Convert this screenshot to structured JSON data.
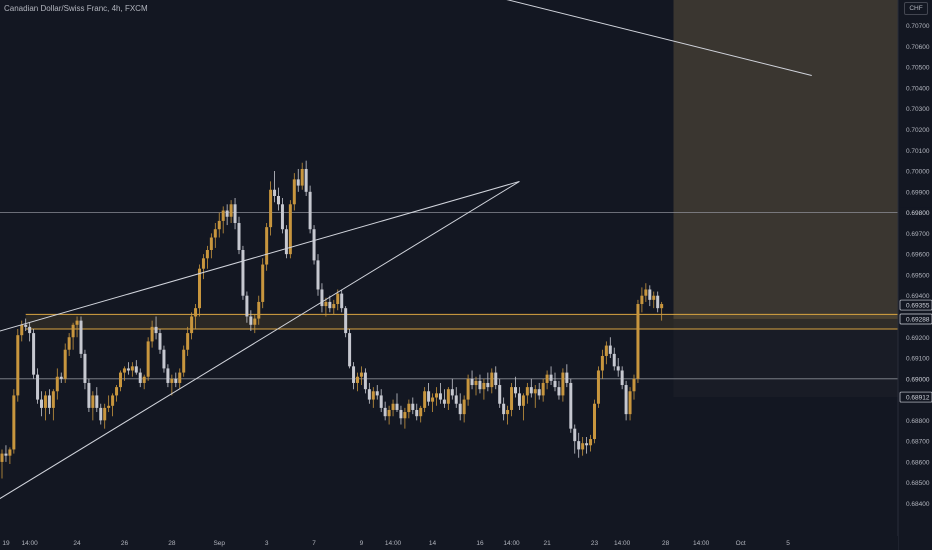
{
  "header": {
    "title": "Canadian Dollar/Swiss Franc, 4h, FXCM",
    "currency": "CHF"
  },
  "colors": {
    "background": "#131722",
    "bull": "#c8963e",
    "bear": "#c6c8d0",
    "hline": "#9598a1",
    "trendline": "#d1d4dc",
    "zone_orange": "#d9a441",
    "projection_profit": "#3a3630",
    "projection_loss": "#191c26"
  },
  "chart_data": {
    "type": "candlestick",
    "ylim": [
      0.6833,
      0.7078
    ],
    "y_ticks": [
      "0.70700",
      "0.70600",
      "0.70500",
      "0.70400",
      "0.70300",
      "0.70200",
      "0.70100",
      "0.70000",
      "0.69900",
      "0.69700",
      "0.69600",
      "0.69500",
      "0.69400",
      "0.69200",
      "0.69100",
      "0.68800",
      "0.68700",
      "0.68600",
      "0.68500",
      "0.68400"
    ],
    "x_ticks": [
      {
        "label": "19",
        "idx": 1
      },
      {
        "label": "14:00",
        "idx": 7
      },
      {
        "label": "24",
        "idx": 19
      },
      {
        "label": "26",
        "idx": 31
      },
      {
        "label": "28",
        "idx": 43
      },
      {
        "label": "Sep",
        "idx": 55
      },
      {
        "label": "3",
        "idx": 67
      },
      {
        "label": "7",
        "idx": 79
      },
      {
        "label": "9",
        "idx": 91
      },
      {
        "label": "14:00",
        "idx": 99
      },
      {
        "label": "14",
        "idx": 109
      },
      {
        "label": "16",
        "idx": 121
      },
      {
        "label": "14:00",
        "idx": 129
      },
      {
        "label": "21",
        "idx": 138
      },
      {
        "label": "23",
        "idx": 150
      },
      {
        "label": "14:00",
        "idx": 157
      },
      {
        "label": "28",
        "idx": 168
      },
      {
        "label": "14:00",
        "idx": 177
      },
      {
        "label": "Oct",
        "idx": 187
      },
      {
        "label": "5",
        "idx": 199
      }
    ],
    "price_labels": [
      {
        "label": "0.69800",
        "value": 0.698,
        "style": "line"
      },
      {
        "label": "0.69355",
        "value": 0.69355,
        "style": "box"
      },
      {
        "label": "0.69288",
        "value": 0.69288,
        "style": "box"
      },
      {
        "label": "0.69000",
        "value": 0.69,
        "style": "line"
      },
      {
        "label": "0.68912",
        "value": 0.68912,
        "style": "box"
      }
    ],
    "horizontal_lines": [
      0.698,
      0.69
    ],
    "support_zone": [
      0.6924,
      0.6931
    ],
    "trendlines": [
      {
        "from": [
          -6,
          0.692
        ],
        "to": [
          131,
          0.6995
        ]
      },
      {
        "from": [
          -6,
          0.6836
        ],
        "to": [
          131,
          0.6995
        ]
      },
      {
        "from": [
          112,
          0.709
        ],
        "to": [
          205,
          0.7046
        ]
      }
    ],
    "projection": {
      "start_idx": 170,
      "top": 0.7078,
      "mid": 0.69288,
      "bottom": 0.68912
    },
    "candles": [
      [
        0.686,
        0.6866,
        0.6852,
        0.6864
      ],
      [
        0.6864,
        0.6868,
        0.686,
        0.6863
      ],
      [
        0.6863,
        0.6867,
        0.6859,
        0.6866
      ],
      [
        0.6866,
        0.6895,
        0.6864,
        0.6892
      ],
      [
        0.6892,
        0.6924,
        0.6889,
        0.6921
      ],
      [
        0.6921,
        0.6928,
        0.6918,
        0.6926
      ],
      [
        0.6926,
        0.6929,
        0.6923,
        0.6925
      ],
      [
        0.6925,
        0.6927,
        0.6918,
        0.6922
      ],
      [
        0.6922,
        0.6924,
        0.69,
        0.6902
      ],
      [
        0.6902,
        0.6905,
        0.6888,
        0.689
      ],
      [
        0.689,
        0.6894,
        0.6882,
        0.6886
      ],
      [
        0.6886,
        0.6894,
        0.688,
        0.6892
      ],
      [
        0.6892,
        0.6895,
        0.6883,
        0.6886
      ],
      [
        0.6886,
        0.6895,
        0.688,
        0.6894
      ],
      [
        0.6894,
        0.6905,
        0.689,
        0.6901
      ],
      [
        0.6901,
        0.6903,
        0.6898,
        0.69
      ],
      [
        0.69,
        0.6917,
        0.6898,
        0.6914
      ],
      [
        0.6914,
        0.6922,
        0.6911,
        0.692
      ],
      [
        0.692,
        0.6927,
        0.6914,
        0.6926
      ],
      [
        0.6926,
        0.693,
        0.692,
        0.6928
      ],
      [
        0.6928,
        0.693,
        0.691,
        0.6912
      ],
      [
        0.6912,
        0.6914,
        0.6895,
        0.6898
      ],
      [
        0.6898,
        0.69,
        0.6884,
        0.6886
      ],
      [
        0.6886,
        0.6894,
        0.688,
        0.6892
      ],
      [
        0.6892,
        0.6896,
        0.6884,
        0.6886
      ],
      [
        0.6886,
        0.6888,
        0.6878,
        0.688
      ],
      [
        0.688,
        0.6888,
        0.6876,
        0.6886
      ],
      [
        0.6886,
        0.6892,
        0.6884,
        0.6887
      ],
      [
        0.6887,
        0.6893,
        0.6882,
        0.6892
      ],
      [
        0.6892,
        0.6897,
        0.6889,
        0.6896
      ],
      [
        0.6896,
        0.6904,
        0.6894,
        0.6903
      ],
      [
        0.6903,
        0.6906,
        0.6899,
        0.6905
      ],
      [
        0.6905,
        0.6908,
        0.6902,
        0.6904
      ],
      [
        0.6904,
        0.6908,
        0.6901,
        0.6906
      ],
      [
        0.6906,
        0.6909,
        0.6902,
        0.6903
      ],
      [
        0.6903,
        0.6905,
        0.6896,
        0.6898
      ],
      [
        0.6898,
        0.6902,
        0.6895,
        0.6901
      ],
      [
        0.6901,
        0.692,
        0.6899,
        0.6918
      ],
      [
        0.6918,
        0.6928,
        0.6915,
        0.6925
      ],
      [
        0.6925,
        0.693,
        0.6919,
        0.6922
      ],
      [
        0.6922,
        0.6924,
        0.6912,
        0.6914
      ],
      [
        0.6914,
        0.6916,
        0.6903,
        0.6905
      ],
      [
        0.6905,
        0.6907,
        0.6896,
        0.6898
      ],
      [
        0.6898,
        0.6902,
        0.6892,
        0.69
      ],
      [
        0.69,
        0.6903,
        0.6896,
        0.6898
      ],
      [
        0.6898,
        0.6905,
        0.6895,
        0.6903
      ],
      [
        0.6903,
        0.6916,
        0.6901,
        0.6914
      ],
      [
        0.6914,
        0.6925,
        0.6911,
        0.6922
      ],
      [
        0.6922,
        0.6932,
        0.6919,
        0.693
      ],
      [
        0.693,
        0.6936,
        0.6924,
        0.6934
      ],
      [
        0.6934,
        0.6955,
        0.693,
        0.6953
      ],
      [
        0.6953,
        0.696,
        0.6948,
        0.6958
      ],
      [
        0.6958,
        0.6964,
        0.6953,
        0.6962
      ],
      [
        0.6962,
        0.697,
        0.6958,
        0.6968
      ],
      [
        0.6968,
        0.6975,
        0.6963,
        0.6972
      ],
      [
        0.6972,
        0.698,
        0.6968,
        0.6976
      ],
      [
        0.6976,
        0.6983,
        0.697,
        0.6981
      ],
      [
        0.6981,
        0.6984,
        0.6974,
        0.6978
      ],
      [
        0.6978,
        0.6986,
        0.6975,
        0.6984
      ],
      [
        0.6984,
        0.6987,
        0.6972,
        0.6975
      ],
      [
        0.6975,
        0.6978,
        0.696,
        0.6962
      ],
      [
        0.6962,
        0.6964,
        0.6938,
        0.694
      ],
      [
        0.694,
        0.6942,
        0.6927,
        0.693
      ],
      [
        0.693,
        0.6933,
        0.6923,
        0.6926
      ],
      [
        0.6926,
        0.6931,
        0.6922,
        0.6929
      ],
      [
        0.6929,
        0.694,
        0.6926,
        0.6937
      ],
      [
        0.6937,
        0.6958,
        0.6934,
        0.6955
      ],
      [
        0.6955,
        0.6975,
        0.6952,
        0.6973
      ],
      [
        0.6973,
        0.6995,
        0.6969,
        0.6991
      ],
      [
        0.6991,
        0.7,
        0.6985,
        0.6988
      ],
      [
        0.6988,
        0.6992,
        0.6981,
        0.6984
      ],
      [
        0.6984,
        0.6987,
        0.697,
        0.6972
      ],
      [
        0.6972,
        0.6974,
        0.6958,
        0.696
      ],
      [
        0.696,
        0.6986,
        0.6958,
        0.6984
      ],
      [
        0.6984,
        0.6999,
        0.6981,
        0.6996
      ],
      [
        0.6996,
        0.7001,
        0.699,
        0.6993
      ],
      [
        0.6993,
        0.7004,
        0.6991,
        0.7001
      ],
      [
        0.7001,
        0.7005,
        0.6988,
        0.699
      ],
      [
        0.699,
        0.6993,
        0.697,
        0.6972
      ],
      [
        0.6972,
        0.6974,
        0.6955,
        0.6957
      ],
      [
        0.6957,
        0.696,
        0.694,
        0.6943
      ],
      [
        0.6943,
        0.6946,
        0.6932,
        0.6935
      ],
      [
        0.6935,
        0.6939,
        0.693,
        0.6937
      ],
      [
        0.6937,
        0.694,
        0.6932,
        0.6934
      ],
      [
        0.6934,
        0.6938,
        0.6931,
        0.6936
      ],
      [
        0.6936,
        0.6943,
        0.6933,
        0.6941
      ],
      [
        0.6941,
        0.6943,
        0.6932,
        0.6934
      ],
      [
        0.6934,
        0.6935,
        0.692,
        0.6922
      ],
      [
        0.6922,
        0.6924,
        0.6905,
        0.6906
      ],
      [
        0.6906,
        0.6908,
        0.6895,
        0.6898
      ],
      [
        0.6898,
        0.6903,
        0.6894,
        0.6901
      ],
      [
        0.6901,
        0.6906,
        0.6897,
        0.6903
      ],
      [
        0.6903,
        0.6905,
        0.6893,
        0.6895
      ],
      [
        0.6895,
        0.6898,
        0.6888,
        0.689
      ],
      [
        0.689,
        0.6896,
        0.6886,
        0.6894
      ],
      [
        0.6894,
        0.6897,
        0.689,
        0.6892
      ],
      [
        0.6892,
        0.6895,
        0.6884,
        0.6886
      ],
      [
        0.6886,
        0.6889,
        0.688,
        0.6882
      ],
      [
        0.6882,
        0.6887,
        0.6878,
        0.6885
      ],
      [
        0.6885,
        0.689,
        0.6882,
        0.6888
      ],
      [
        0.6888,
        0.6893,
        0.6884,
        0.6885
      ],
      [
        0.6885,
        0.6887,
        0.6878,
        0.6881
      ],
      [
        0.6881,
        0.6886,
        0.6876,
        0.6884
      ],
      [
        0.6884,
        0.689,
        0.6881,
        0.6888
      ],
      [
        0.6888,
        0.6891,
        0.6883,
        0.6885
      ],
      [
        0.6885,
        0.6888,
        0.688,
        0.6882
      ],
      [
        0.6882,
        0.6887,
        0.6879,
        0.6886
      ],
      [
        0.6886,
        0.6896,
        0.6884,
        0.6894
      ],
      [
        0.6894,
        0.6898,
        0.6887,
        0.6889
      ],
      [
        0.6889,
        0.6893,
        0.6884,
        0.6891
      ],
      [
        0.6891,
        0.6896,
        0.6887,
        0.6893
      ],
      [
        0.6893,
        0.6898,
        0.6888,
        0.689
      ],
      [
        0.689,
        0.6895,
        0.6886,
        0.6888
      ],
      [
        0.6888,
        0.6896,
        0.6885,
        0.6895
      ],
      [
        0.6895,
        0.69,
        0.689,
        0.6892
      ],
      [
        0.6892,
        0.6896,
        0.6886,
        0.6888
      ],
      [
        0.6888,
        0.6893,
        0.688,
        0.6883
      ],
      [
        0.6883,
        0.6892,
        0.6879,
        0.689
      ],
      [
        0.689,
        0.6902,
        0.6887,
        0.69
      ],
      [
        0.69,
        0.6904,
        0.6895,
        0.6897
      ],
      [
        0.6897,
        0.6901,
        0.6892,
        0.6899
      ],
      [
        0.6899,
        0.6902,
        0.6893,
        0.6895
      ],
      [
        0.6895,
        0.69,
        0.689,
        0.6898
      ],
      [
        0.6898,
        0.6903,
        0.6894,
        0.6896
      ],
      [
        0.6896,
        0.6905,
        0.6893,
        0.6903
      ],
      [
        0.6903,
        0.6906,
        0.6895,
        0.6897
      ],
      [
        0.6897,
        0.69,
        0.6886,
        0.6888
      ],
      [
        0.6888,
        0.6891,
        0.688,
        0.6883
      ],
      [
        0.6883,
        0.6887,
        0.6878,
        0.6885
      ],
      [
        0.6885,
        0.6898,
        0.6882,
        0.6896
      ],
      [
        0.6896,
        0.6901,
        0.6891,
        0.6893
      ],
      [
        0.6893,
        0.6896,
        0.6885,
        0.6887
      ],
      [
        0.6887,
        0.6893,
        0.688,
        0.6892
      ],
      [
        0.6892,
        0.6898,
        0.6888,
        0.6896
      ],
      [
        0.6896,
        0.69,
        0.6891,
        0.6893
      ],
      [
        0.6893,
        0.6897,
        0.6886,
        0.6895
      ],
      [
        0.6895,
        0.6898,
        0.689,
        0.6892
      ],
      [
        0.6892,
        0.69,
        0.6889,
        0.6898
      ],
      [
        0.6898,
        0.6904,
        0.6895,
        0.6902
      ],
      [
        0.6902,
        0.6906,
        0.6897,
        0.6899
      ],
      [
        0.6899,
        0.6903,
        0.6894,
        0.6896
      ],
      [
        0.6896,
        0.6899,
        0.689,
        0.6892
      ],
      [
        0.6892,
        0.6905,
        0.6889,
        0.6903
      ],
      [
        0.6903,
        0.6907,
        0.6896,
        0.6898
      ],
      [
        0.6898,
        0.69,
        0.6874,
        0.6876
      ],
      [
        0.6876,
        0.6878,
        0.6864,
        0.687
      ],
      [
        0.687,
        0.6874,
        0.6862,
        0.6866
      ],
      [
        0.6866,
        0.6872,
        0.6863,
        0.6869
      ],
      [
        0.6869,
        0.6872,
        0.6864,
        0.6868
      ],
      [
        0.6868,
        0.6873,
        0.6865,
        0.6871
      ],
      [
        0.6871,
        0.689,
        0.6869,
        0.6888
      ],
      [
        0.6888,
        0.6906,
        0.6886,
        0.6904
      ],
      [
        0.6904,
        0.6914,
        0.69,
        0.6911
      ],
      [
        0.6911,
        0.6918,
        0.6907,
        0.6916
      ],
      [
        0.6916,
        0.692,
        0.691,
        0.6912
      ],
      [
        0.6912,
        0.6915,
        0.6904,
        0.6906
      ],
      [
        0.6906,
        0.691,
        0.6901,
        0.6904
      ],
      [
        0.6904,
        0.6906,
        0.6895,
        0.6897
      ],
      [
        0.6897,
        0.6899,
        0.688,
        0.6883
      ],
      [
        0.6883,
        0.6896,
        0.688,
        0.6894
      ],
      [
        0.6894,
        0.6902,
        0.689,
        0.69
      ],
      [
        0.69,
        0.6938,
        0.6898,
        0.6936
      ],
      [
        0.6936,
        0.6944,
        0.6932,
        0.694
      ],
      [
        0.694,
        0.6946,
        0.6937,
        0.6943
      ],
      [
        0.6943,
        0.6945,
        0.6935,
        0.6938
      ],
      [
        0.6938,
        0.6942,
        0.6934,
        0.694
      ],
      [
        0.694,
        0.6942,
        0.6932,
        0.6934
      ],
      [
        0.6934,
        0.6937,
        0.6928,
        0.6936
      ]
    ]
  }
}
